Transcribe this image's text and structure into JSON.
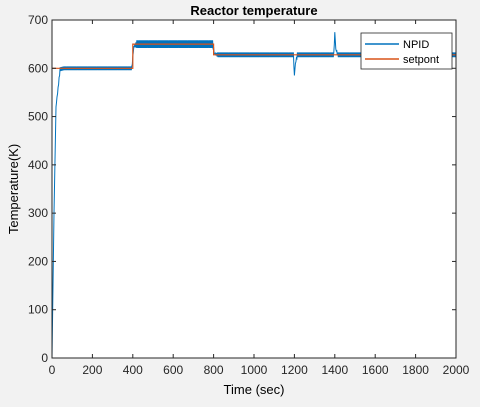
{
  "chart_data": {
    "type": "line",
    "title": "Reactor  temperature",
    "xlabel": "Time (sec)",
    "ylabel": "Temperature(K)",
    "xlim": [
      0,
      2000
    ],
    "ylim": [
      0,
      700
    ],
    "xticks": [
      0,
      200,
      400,
      600,
      800,
      1000,
      1200,
      1400,
      1600,
      1800,
      2000
    ],
    "yticks": [
      0,
      100,
      200,
      300,
      400,
      500,
      600,
      700
    ],
    "grid": false,
    "legend_position": "top-right",
    "series": [
      {
        "name": "NPID",
        "color": "#0072bd",
        "x": [
          0,
          10,
          20,
          40,
          60,
          100,
          200,
          300,
          395,
          405,
          420,
          500,
          600,
          700,
          795,
          805,
          820,
          1000,
          1195,
          1200,
          1205,
          1215,
          1230,
          1300,
          1395,
          1400,
          1405,
          1415,
          1430,
          1600,
          1800,
          2000
        ],
        "y": [
          0,
          300,
          520,
          598,
          600,
          600,
          600,
          600,
          600,
          645,
          650,
          650,
          650,
          650,
          650,
          630,
          628,
          628,
          628,
          585,
          610,
          628,
          628,
          628,
          628,
          675,
          640,
          628,
          628,
          628,
          628,
          628
        ],
        "ripple_amplitude": [
          0,
          0,
          0,
          4,
          4,
          4,
          4,
          4,
          4,
          0,
          8,
          8,
          8,
          8,
          8,
          0,
          5,
          5,
          5,
          0,
          0,
          5,
          5,
          5,
          5,
          0,
          0,
          5,
          5,
          5,
          5,
          5
        ]
      },
      {
        "name": "setpont",
        "color": "#d95319",
        "x": [
          0,
          400,
          400,
          800,
          800,
          2000
        ],
        "y": [
          600,
          600,
          650,
          650,
          628,
          628
        ]
      }
    ]
  }
}
